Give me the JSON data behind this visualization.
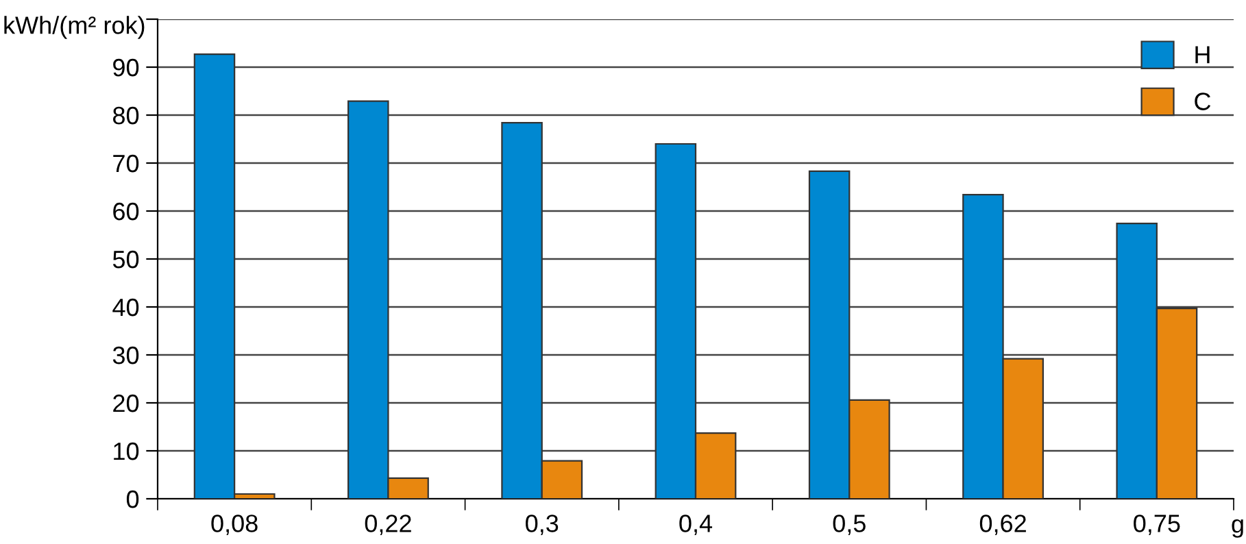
{
  "chart_data": {
    "type": "bar",
    "ylabel": "kWh/(m² rok)",
    "xlabel": "g",
    "categories": [
      "0,08",
      "0,22",
      "0,3",
      "0,4",
      "0,5",
      "0,62",
      "0,75"
    ],
    "series": [
      {
        "name": "H",
        "color": "#0088d1",
        "values": [
          92.7,
          82.9,
          78.4,
          74.0,
          68.3,
          63.4,
          57.4
        ]
      },
      {
        "name": "C",
        "color": "#e8870f",
        "values": [
          1.0,
          4.3,
          7.9,
          13.7,
          20.6,
          29.2,
          39.7
        ]
      }
    ],
    "ylim": [
      0,
      100
    ],
    "yticks": [
      0,
      10,
      20,
      30,
      40,
      50,
      60,
      70,
      80,
      90,
      {
        "value": 100,
        "label": null
      }
    ],
    "grid": "y",
    "legend": "top right"
  }
}
